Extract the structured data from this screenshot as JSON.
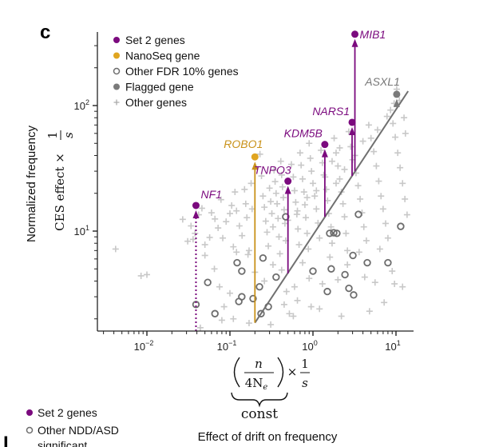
{
  "panel": {
    "letter": "c",
    "next_letter_partial": "I"
  },
  "colors": {
    "set2": "#7b0a7e",
    "nanoseq": "#e0a520",
    "nanoseq_line": "#c9921a",
    "other_fdr": "#6d6d6d",
    "flagged": "#7a7a7a",
    "other_genes": "#c8c8c8",
    "diagonal": "#707070",
    "axis": "#222222"
  },
  "chart_data": {
    "type": "scatter",
    "title": "",
    "xscale": "log",
    "yscale": "log",
    "xlim": [
      0.0026,
      16
    ],
    "ylim": [
      1.6,
      370
    ],
    "grid": false,
    "legend_position": "top-left",
    "xticks": [
      {
        "value": 0.01,
        "base": "10",
        "exp": "−2"
      },
      {
        "value": 0.1,
        "base": "10",
        "exp": "−1"
      },
      {
        "value": 1,
        "base": "10",
        "exp": "0"
      },
      {
        "value": 10,
        "base": "10",
        "exp": "1"
      }
    ],
    "yticks": [
      {
        "value": 100,
        "base": "10",
        "exp": "2"
      },
      {
        "value": 10,
        "base": "10",
        "exp": "1"
      }
    ],
    "ylabel": {
      "line1": "Normalized frequency",
      "line2": "CES effect ×",
      "frac_num": "1",
      "frac_den": "s"
    },
    "xlabel": {
      "paren_num": "n",
      "paren_den": "4N",
      "paren_den_sub": "e",
      "times": "×",
      "frac_num": "1",
      "frac_den": "s",
      "brace_label": "const",
      "description": "Effect of drift on frequency"
    },
    "legend": [
      {
        "label": "Set 2 genes",
        "marker": "filled-circle",
        "color_key": "set2"
      },
      {
        "label": "NanoSeq gene",
        "marker": "filled-circle",
        "color_key": "nanoseq"
      },
      {
        "label": "Other FDR 10% genes",
        "marker": "open-circle",
        "color_key": "other_fdr"
      },
      {
        "label": "Flagged gene",
        "marker": "filled-circle",
        "color_key": "flagged"
      },
      {
        "label": "Other genes",
        "marker": "plus",
        "color_key": "other_genes"
      }
    ],
    "diagonal_line": {
      "description": "y = x × const",
      "slope_factor": 9.3,
      "x_range": [
        0.2,
        14
      ]
    },
    "highlighted_genes": [
      {
        "name": "MIB1",
        "category": "set2",
        "x": 3.2,
        "y": 370,
        "arrow_from_y": 30,
        "arrow_style": "solid"
      },
      {
        "name": "ASXL1",
        "category": "flagged",
        "x": 10.2,
        "y": 123,
        "arrow_from_y": 100,
        "arrow_style": "solid"
      },
      {
        "name": "NARS1",
        "category": "set2",
        "x": 2.96,
        "y": 73.5,
        "arrow_from_y": 27.5,
        "arrow_style": "solid"
      },
      {
        "name": "KDM5B",
        "category": "set2",
        "x": 1.39,
        "y": 49,
        "arrow_from_y": 13,
        "arrow_style": "solid"
      },
      {
        "name": "TNPO3",
        "category": "set2",
        "x": 0.5,
        "y": 25,
        "arrow_from_y": 4.6,
        "arrow_style": "solid"
      },
      {
        "name": "ROBO1",
        "category": "nanoseq",
        "x": 0.2,
        "y": 39,
        "arrow_from_y": 1.86,
        "arrow_style": "solid"
      },
      {
        "name": "NF1",
        "category": "set2",
        "x": 0.039,
        "y": 16,
        "arrow_from_y": 1.6,
        "arrow_style": "dotted"
      }
    ],
    "other_fdr_genes": [
      [
        3.53,
        13.6
      ],
      [
        11.4,
        10.9
      ],
      [
        0.47,
        13.0
      ],
      [
        1.59,
        9.6
      ],
      [
        1.78,
        9.7
      ],
      [
        1.94,
        9.6
      ],
      [
        3.03,
        6.4
      ],
      [
        4.51,
        5.6
      ],
      [
        8.0,
        5.6
      ],
      [
        0.25,
        6.1
      ],
      [
        0.122,
        5.6
      ],
      [
        0.139,
        4.8
      ],
      [
        0.36,
        4.3
      ],
      [
        1.0,
        4.8
      ],
      [
        1.66,
        5.0
      ],
      [
        2.43,
        4.5
      ],
      [
        1.49,
        3.3
      ],
      [
        2.71,
        3.5
      ],
      [
        3.09,
        3.1
      ],
      [
        0.227,
        3.6
      ],
      [
        0.139,
        3.0
      ],
      [
        0.128,
        2.75
      ],
      [
        0.19,
        2.9
      ],
      [
        0.29,
        2.5
      ],
      [
        0.237,
        2.2
      ],
      [
        0.066,
        2.2
      ],
      [
        0.054,
        3.9
      ],
      [
        0.039,
        2.6
      ]
    ],
    "other_genes": [
      [
        0.0042,
        7.2
      ],
      [
        0.0085,
        4.4
      ],
      [
        0.01,
        4.5
      ],
      [
        0.027,
        12.4
      ],
      [
        0.031,
        8.3
      ],
      [
        0.036,
        8.6
      ],
      [
        0.034,
        11.0
      ],
      [
        0.042,
        13.5
      ],
      [
        0.046,
        15.2
      ],
      [
        0.038,
        9.6
      ],
      [
        0.05,
        7.8
      ],
      [
        0.057,
        8.9
      ],
      [
        0.06,
        14.0
      ],
      [
        0.066,
        12.5
      ],
      [
        0.072,
        10.6
      ],
      [
        0.078,
        17.8
      ],
      [
        0.082,
        8.8
      ],
      [
        0.09,
        11.9
      ],
      [
        0.1,
        13.8
      ],
      [
        0.105,
        16.0
      ],
      [
        0.11,
        7.5
      ],
      [
        0.115,
        20.5
      ],
      [
        0.12,
        14.5
      ],
      [
        0.13,
        11.0
      ],
      [
        0.14,
        9.2
      ],
      [
        0.15,
        21.5
      ],
      [
        0.155,
        16.5
      ],
      [
        0.16,
        12.8
      ],
      [
        0.17,
        7.0
      ],
      [
        0.18,
        24.0
      ],
      [
        0.185,
        15.0
      ],
      [
        0.23,
        41.0
      ],
      [
        0.24,
        27.5
      ],
      [
        0.25,
        19.0
      ],
      [
        0.26,
        15.5
      ],
      [
        0.27,
        12.0
      ],
      [
        0.28,
        9.8
      ],
      [
        0.29,
        7.6
      ],
      [
        0.3,
        22.0
      ],
      [
        0.31,
        17.2
      ],
      [
        0.32,
        13.8
      ],
      [
        0.33,
        10.8
      ],
      [
        0.34,
        30.5
      ],
      [
        0.35,
        24.8
      ],
      [
        0.36,
        20.0
      ],
      [
        0.37,
        16.5
      ],
      [
        0.38,
        12.6
      ],
      [
        0.39,
        9.0
      ],
      [
        0.4,
        6.6
      ],
      [
        0.41,
        36.0
      ],
      [
        0.42,
        28.0
      ],
      [
        0.43,
        22.5
      ],
      [
        0.44,
        18.5
      ],
      [
        0.45,
        14.8
      ],
      [
        0.46,
        11.5
      ],
      [
        0.47,
        8.4
      ],
      [
        0.55,
        34.0
      ],
      [
        0.58,
        27.0
      ],
      [
        0.6,
        21.0
      ],
      [
        0.62,
        17.0
      ],
      [
        0.64,
        13.6
      ],
      [
        0.66,
        10.4
      ],
      [
        0.68,
        7.8
      ],
      [
        0.7,
        42.0
      ],
      [
        0.72,
        33.5
      ],
      [
        0.75,
        26.0
      ],
      [
        0.78,
        20.5
      ],
      [
        0.8,
        16.2
      ],
      [
        0.82,
        12.8
      ],
      [
        0.85,
        9.6
      ],
      [
        0.88,
        7.2
      ],
      [
        0.9,
        50.0
      ],
      [
        0.93,
        38.0
      ],
      [
        0.96,
        30.0
      ],
      [
        1.0,
        24.0
      ],
      [
        1.05,
        19.0
      ],
      [
        1.1,
        15.0
      ],
      [
        1.15,
        11.6
      ],
      [
        1.2,
        8.8
      ],
      [
        1.25,
        44.0
      ],
      [
        1.3,
        35.0
      ],
      [
        1.35,
        28.0
      ],
      [
        1.45,
        21.5
      ],
      [
        1.5,
        17.5
      ],
      [
        1.55,
        13.8
      ],
      [
        1.65,
        10.8
      ],
      [
        1.7,
        8.0
      ],
      [
        1.8,
        55.0
      ],
      [
        1.9,
        42.0
      ],
      [
        2.0,
        33.0
      ],
      [
        2.1,
        26.0
      ],
      [
        2.2,
        20.5
      ],
      [
        2.3,
        16.5
      ],
      [
        2.4,
        13.0
      ],
      [
        2.5,
        9.6
      ],
      [
        2.6,
        7.0
      ],
      [
        2.7,
        62.0
      ],
      [
        2.85,
        47.0
      ],
      [
        3.0,
        37.0
      ],
      [
        3.3,
        29.0
      ],
      [
        3.5,
        23.0
      ],
      [
        3.7,
        18.0
      ],
      [
        3.9,
        14.0
      ],
      [
        4.1,
        10.8
      ],
      [
        4.4,
        8.4
      ],
      [
        4.7,
        70.0
      ],
      [
        5.0,
        55.0
      ],
      [
        5.4,
        43.0
      ],
      [
        5.8,
        33.0
      ],
      [
        6.2,
        25.0
      ],
      [
        6.6,
        19.0
      ],
      [
        7.0,
        15.0
      ],
      [
        7.5,
        11.5
      ],
      [
        8.0,
        8.8
      ],
      [
        8.6,
        92.0
      ],
      [
        9.2,
        72.0
      ],
      [
        9.8,
        56.0
      ],
      [
        10.5,
        42.0
      ],
      [
        11.2,
        32.0
      ],
      [
        12.0,
        24.0
      ],
      [
        12.8,
        18.0
      ],
      [
        13.6,
        13.5
      ],
      [
        0.75,
        5.6
      ],
      [
        0.9,
        4.2
      ],
      [
        1.3,
        3.8
      ],
      [
        1.6,
        6.2
      ],
      [
        2.0,
        4.1
      ],
      [
        2.6,
        5.4
      ],
      [
        3.6,
        6.8
      ],
      [
        4.2,
        4.3
      ],
      [
        5.6,
        3.9
      ],
      [
        6.4,
        7.2
      ],
      [
        9.0,
        4.8
      ],
      [
        12.0,
        3.6
      ],
      [
        0.6,
        3.6
      ],
      [
        0.65,
        2.8
      ],
      [
        0.52,
        2.2
      ],
      [
        0.58,
        2.1
      ],
      [
        0.48,
        3.3
      ],
      [
        0.42,
        4.9
      ],
      [
        0.33,
        5.4
      ],
      [
        0.26,
        4.0
      ],
      [
        0.2,
        4.7
      ],
      [
        0.165,
        6.5
      ],
      [
        0.12,
        6.8
      ],
      [
        0.1,
        3.2
      ],
      [
        0.085,
        2.5
      ],
      [
        0.075,
        3.6
      ],
      [
        0.065,
        5.0
      ],
      [
        0.05,
        6.4
      ],
      [
        0.044,
        1.7
      ],
      [
        0.08,
        1.95
      ],
      [
        0.11,
        2.0
      ],
      [
        0.17,
        1.85
      ],
      [
        0.31,
        1.8
      ],
      [
        0.45,
        2.6
      ],
      [
        0.95,
        2.5
      ],
      [
        1.2,
        2.4
      ],
      [
        2.2,
        2.1
      ],
      [
        4.8,
        2.3
      ],
      [
        7.2,
        2.7
      ],
      [
        9.6,
        3.8
      ],
      [
        1.1,
        21.0
      ],
      [
        1.4,
        27.0
      ],
      [
        1.7,
        36.0
      ],
      [
        2.1,
        46.0
      ],
      [
        0.85,
        18.5
      ],
      [
        0.65,
        14.5
      ],
      [
        0.5,
        12.2
      ],
      [
        1.9,
        24.0
      ],
      [
        2.4,
        31.0
      ],
      [
        3.2,
        40.0
      ],
      [
        4.0,
        52.0
      ],
      [
        6.0,
        64.0
      ],
      [
        7.8,
        82.0
      ],
      [
        11.0,
        110.0
      ],
      [
        12.5,
        80.0
      ],
      [
        10.2,
        135.0
      ],
      [
        9.5,
        104.0
      ],
      [
        13.0,
        60.0
      ]
    ]
  },
  "bottom_legend": [
    {
      "label": "Set 2 genes",
      "marker": "filled-circle",
      "color_key": "set2"
    },
    {
      "label": "Other NDD/ASD",
      "marker": "open-circle",
      "color_key": "other_fdr"
    },
    {
      "label": "significant",
      "marker": "none",
      "color_key": "other_fdr"
    }
  ]
}
